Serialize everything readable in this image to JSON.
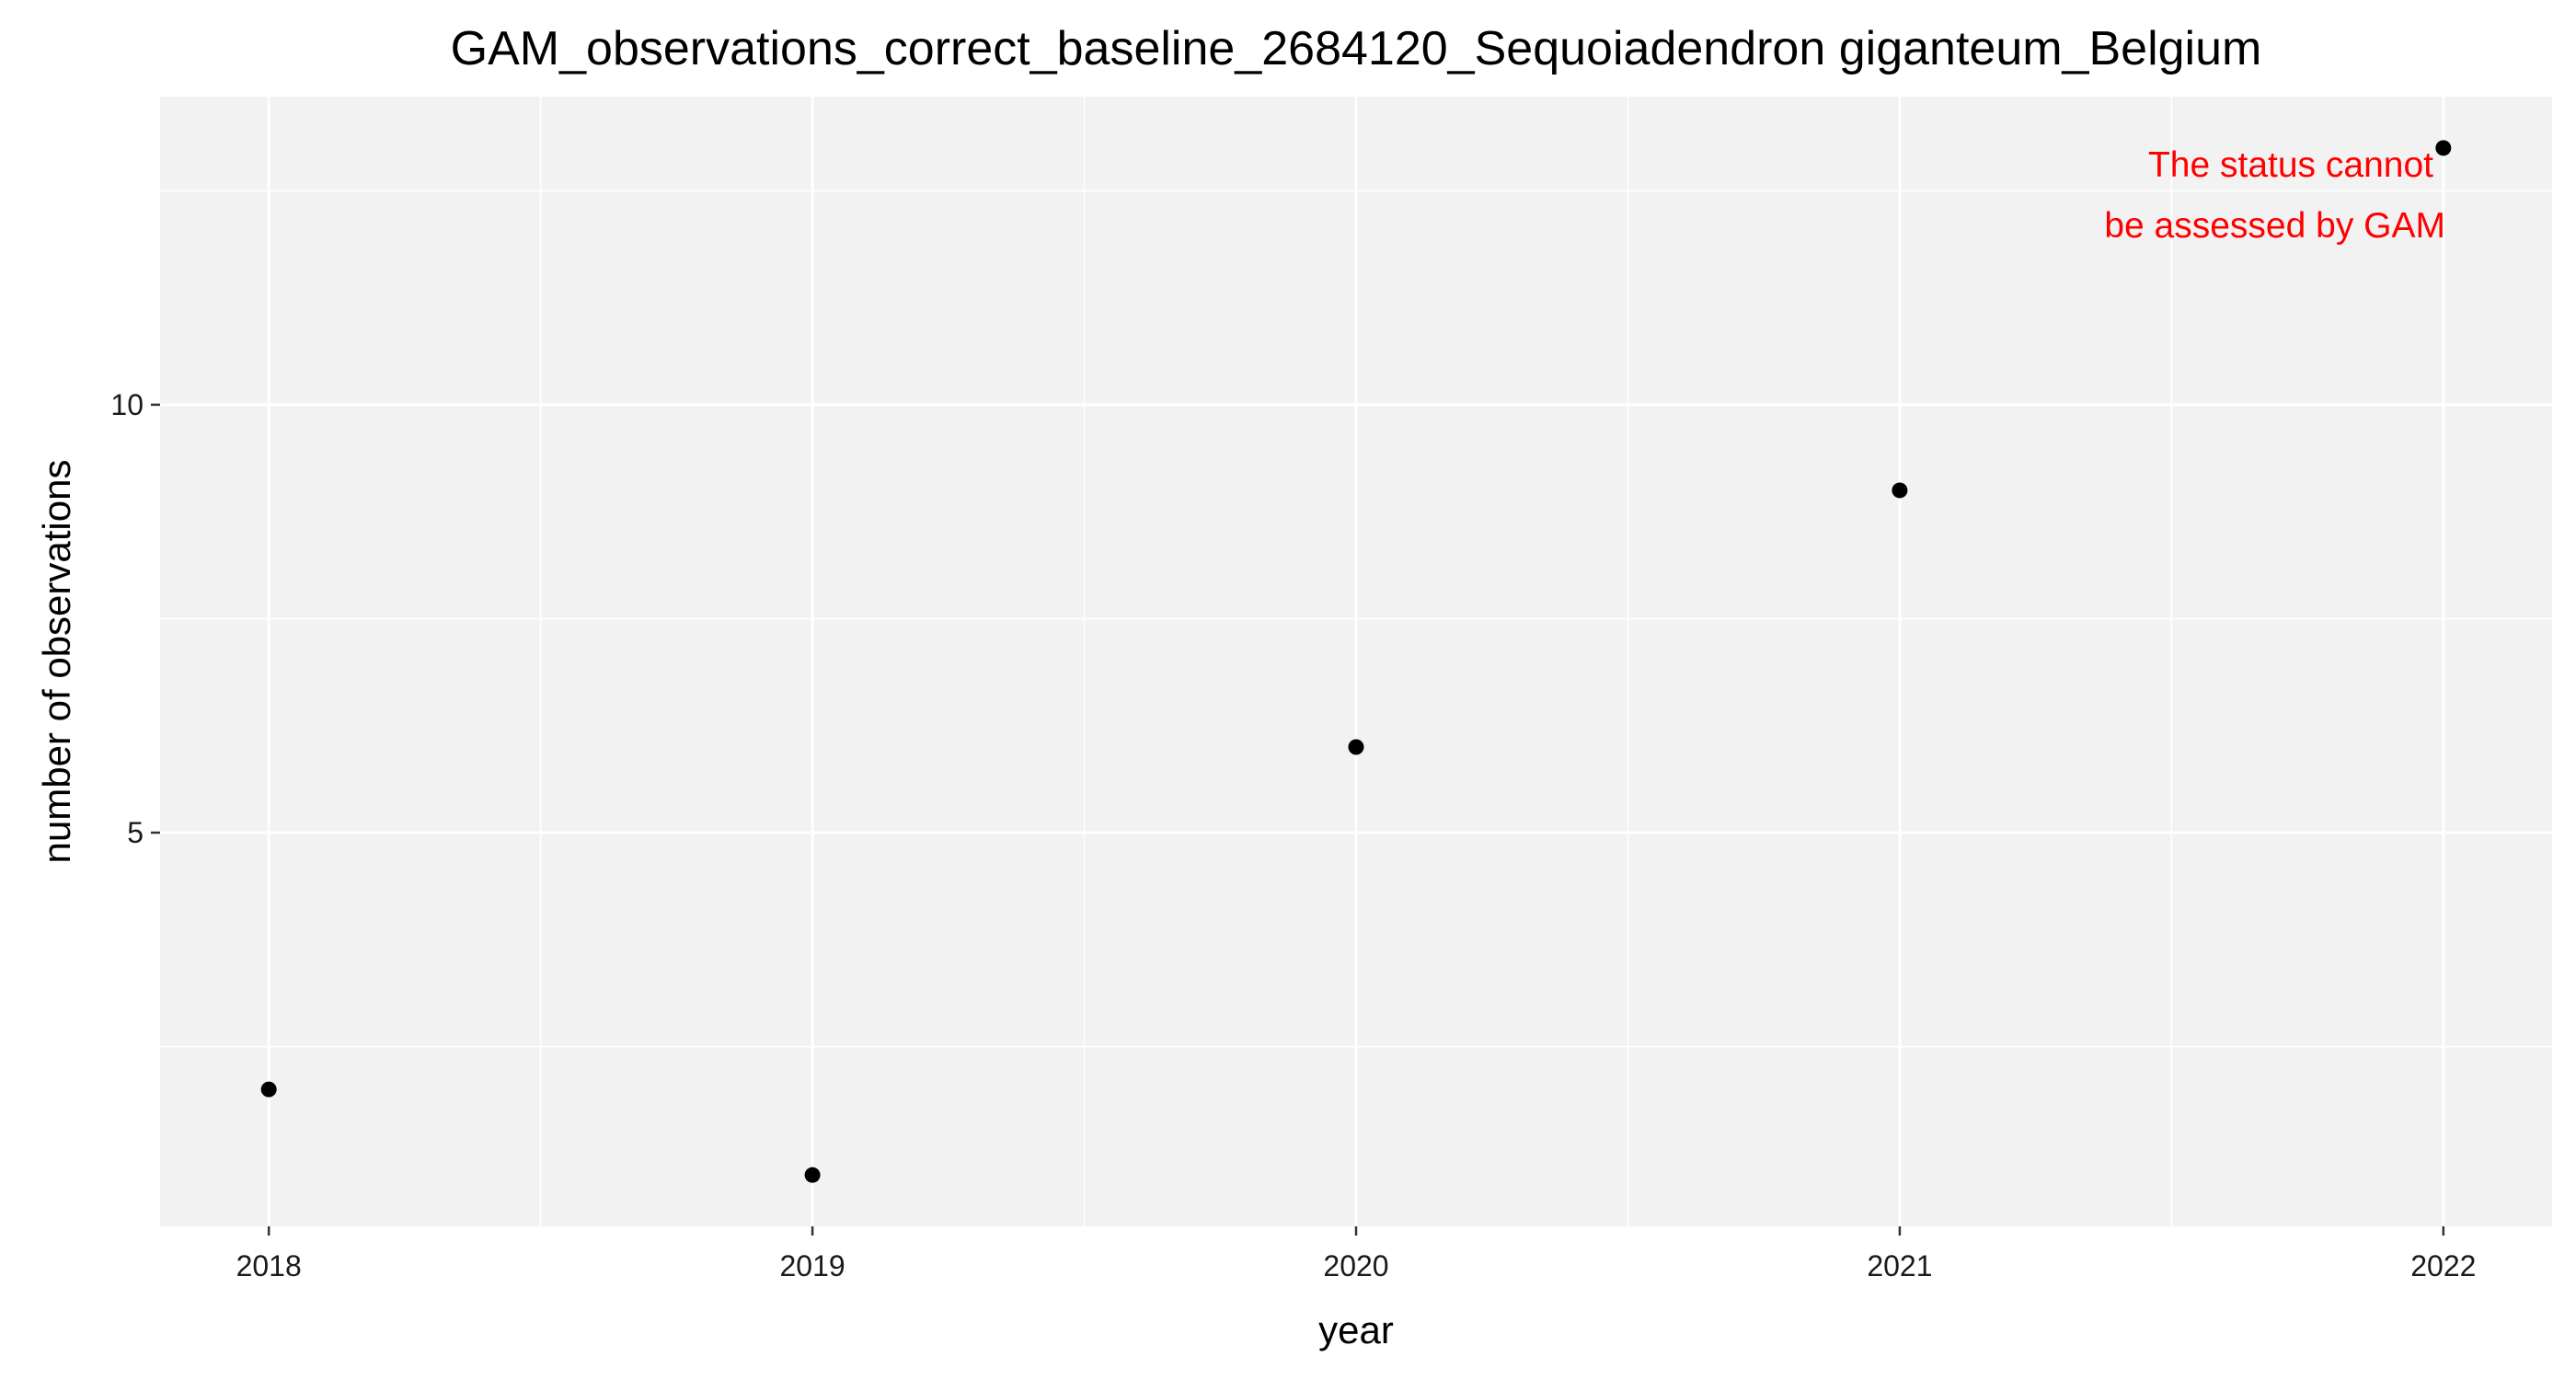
{
  "chart_data": {
    "type": "scatter",
    "title": "GAM_observations_correct_baseline_2684120_Sequoiadendron giganteum_Belgium",
    "xlabel": "year",
    "ylabel": "number of observations",
    "x_ticks": [
      2018,
      2019,
      2020,
      2021,
      2022
    ],
    "y_ticks": [
      5,
      10
    ],
    "xlim": [
      2017.8,
      2022.2
    ],
    "ylim": [
      0.4,
      13.6
    ],
    "grid": true,
    "legend": "none",
    "points": [
      {
        "x": 2018,
        "y": 2
      },
      {
        "x": 2019,
        "y": 1
      },
      {
        "x": 2020,
        "y": 6
      },
      {
        "x": 2021,
        "y": 9
      },
      {
        "x": 2022,
        "y": 13
      }
    ],
    "annotation": {
      "lines": [
        "The status cannot",
        "be assessed by GAM"
      ],
      "color": "#ff0000"
    },
    "colors": {
      "panel_background": "#f2f2f2",
      "grid": "#ffffff",
      "point": "#000000"
    }
  }
}
